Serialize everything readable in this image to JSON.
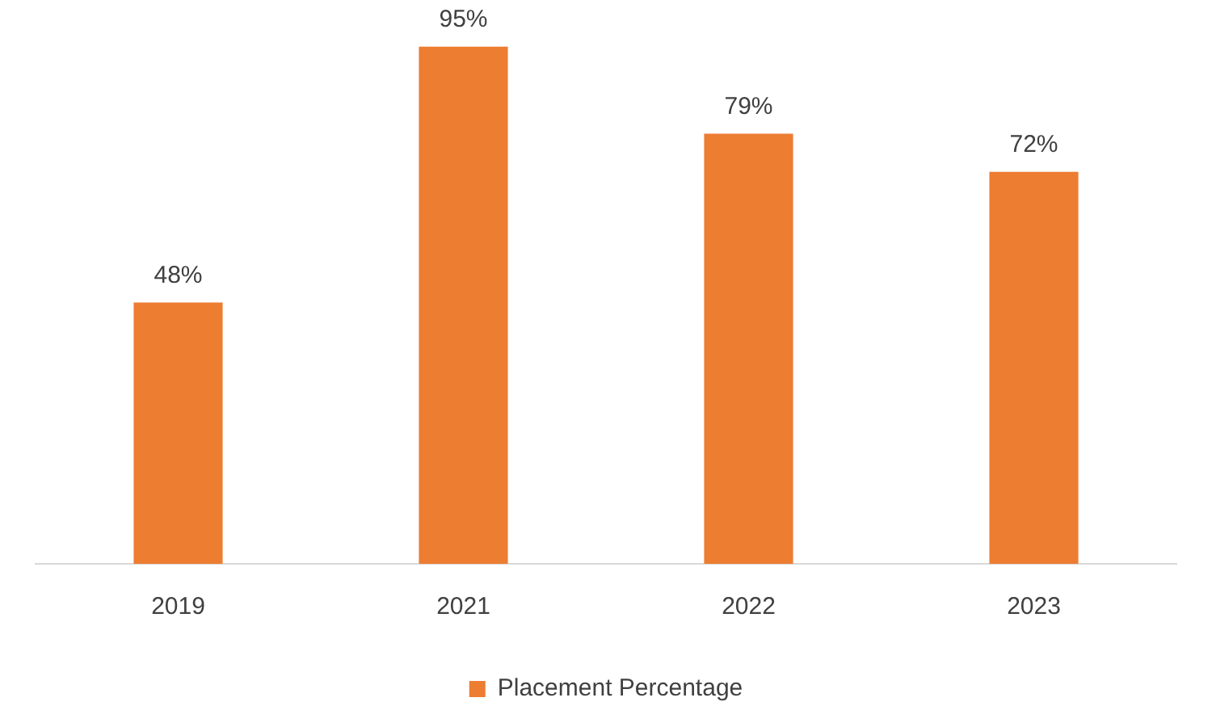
{
  "chart_data": {
    "type": "bar",
    "categories": [
      "2019",
      "2021",
      "2022",
      "2023"
    ],
    "series": [
      {
        "name": "Placement Percentage",
        "color": "#ed7d31",
        "values": [
          48,
          95,
          79,
          72
        ],
        "value_labels": [
          "48%",
          "95%",
          "79%",
          "72%"
        ]
      }
    ],
    "legend": "bottom",
    "grid": false,
    "tick_labels": "x"
  }
}
